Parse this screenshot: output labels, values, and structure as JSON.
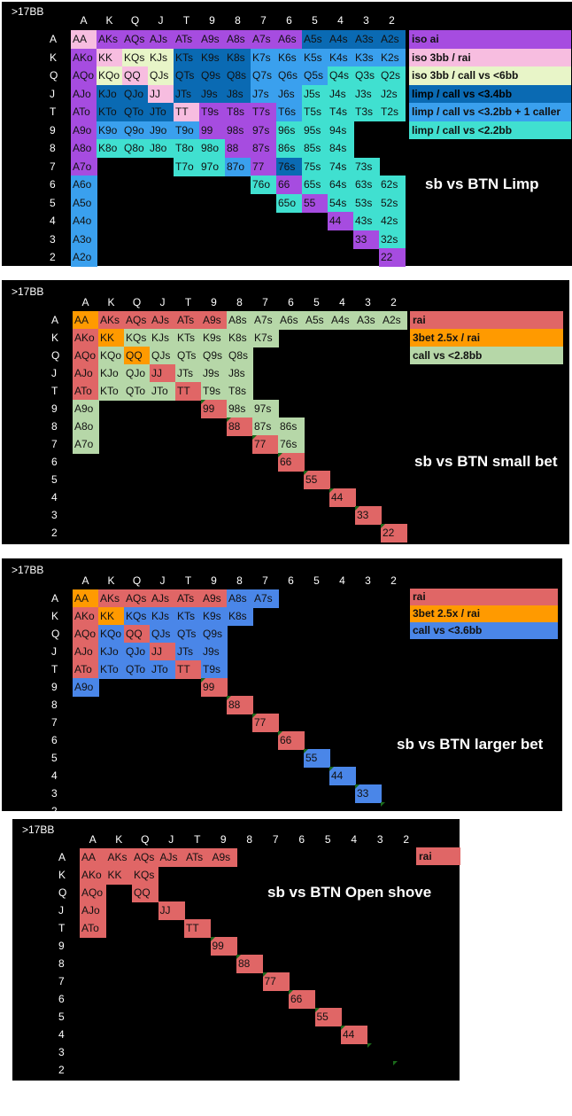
{
  "colors": {
    "iso_ai": "#a64ce0",
    "iso_3bb_rai": "#f7bde0",
    "iso_3bb_call6": "#e8f5c8",
    "limp_call_3_4": "#0a6ab3",
    "limp_call_3_2": "#3aa0ee",
    "limp_call_2_2": "#40e0d0",
    "rai": "#e06666",
    "three_bet": "#ff9a00",
    "call_green": "#b6d7a8",
    "call_blue": "#4a86e8"
  },
  "ranks": [
    "A",
    "K",
    "Q",
    "J",
    "T",
    "9",
    "8",
    "7",
    "6",
    "5",
    "4",
    "3",
    "2"
  ],
  "panels": [
    {
      "stack": ">17BB",
      "caption": "sb vs BTN Limp",
      "legend": [
        {
          "label": "iso ai",
          "color": "iso_ai"
        },
        {
          "label": "iso 3bb / rai",
          "color": "iso_3bb_rai"
        },
        {
          "label": "iso 3bb / call vs <6bb",
          "color": "iso_3bb_call6"
        },
        {
          "label": "limp / call vs <3.4bb",
          "color": "limp_call_3_4"
        },
        {
          "label": "limp / call vs <3.2bb + 1 caller",
          "color": "limp_call_3_2"
        },
        {
          "label": "limp / call vs <2.2bb",
          "color": "limp_call_2_2"
        }
      ],
      "grid": [
        [
          "AA iso_3bb_rai",
          "AKs iso_ai",
          "AQs iso_ai",
          "AJs iso_ai",
          "ATs iso_ai",
          "A9s iso_ai",
          "A8s iso_ai",
          "A7s iso_ai",
          "A6s iso_ai",
          "A5s limp_call_3_4",
          "A4s limp_call_3_4",
          "A3s limp_call_3_4",
          "A2s limp_call_3_4"
        ],
        [
          "AKo iso_ai",
          "KK iso_3bb_rai",
          "KQs iso_3bb_call6",
          "KJs iso_3bb_call6",
          "KTs limp_call_3_4",
          "K9s limp_call_3_4",
          "K8s limp_call_3_4",
          "K7s limp_call_3_2",
          "K6s limp_call_3_2",
          "K5s limp_call_3_2",
          "K4s limp_call_3_2",
          "K3s limp_call_3_2",
          "K2s limp_call_3_2"
        ],
        [
          "AQo iso_ai",
          "KQo iso_3bb_call6",
          "QQ iso_3bb_rai",
          "QJs iso_3bb_call6",
          "QTs limp_call_3_4",
          "Q9s limp_call_3_4",
          "Q8s limp_call_3_4",
          "Q7s limp_call_3_2",
          "Q6s limp_call_3_2",
          "Q5s limp_call_3_2",
          "Q4s limp_call_2_2",
          "Q3s limp_call_2_2",
          "Q2s limp_call_2_2"
        ],
        [
          "AJo iso_ai",
          "KJo limp_call_3_4",
          "QJo limp_call_3_4",
          "JJ iso_3bb_rai",
          "JTs limp_call_3_4",
          "J9s limp_call_3_4",
          "J8s limp_call_3_4",
          "J7s limp_call_3_2",
          "J6s limp_call_3_2",
          "J5s limp_call_2_2",
          "J4s limp_call_2_2",
          "J3s limp_call_2_2",
          "J2s limp_call_2_2"
        ],
        [
          "ATo iso_ai",
          "KTo limp_call_3_4",
          "QTo limp_call_3_4",
          "JTo limp_call_3_4",
          "TT iso_3bb_rai",
          "T9s iso_ai",
          "T8s iso_ai",
          "T7s iso_ai",
          "T6s limp_call_3_2",
          "T5s limp_call_2_2",
          "T4s limp_call_2_2",
          "T3s limp_call_2_2",
          "T2s limp_call_2_2"
        ],
        [
          "A9o iso_ai",
          "K9o limp_call_3_2",
          "Q9o limp_call_3_2",
          "J9o limp_call_3_2",
          "T9o limp_call_3_2",
          "99 iso_ai",
          "98s iso_ai",
          "97s iso_ai",
          "96s limp_call_2_2",
          "95s limp_call_2_2",
          "94s limp_call_2_2",
          "",
          ""
        ],
        [
          "A8o iso_ai",
          "K8o limp_call_2_2",
          "Q8o limp_call_2_2",
          "J8o limp_call_2_2",
          "T8o limp_call_2_2",
          "98o limp_call_2_2",
          "88 iso_ai",
          "87s iso_ai",
          "86s limp_call_2_2",
          "85s limp_call_2_2",
          "84s limp_call_2_2",
          "",
          ""
        ],
        [
          "A7o iso_ai",
          "",
          "",
          "",
          "T7o limp_call_2_2",
          "97o limp_call_2_2",
          "87o limp_call_3_2",
          "77 iso_ai",
          "76s limp_call_3_4",
          "75s limp_call_2_2",
          "74s limp_call_2_2",
          "73s limp_call_2_2",
          ""
        ],
        [
          "A6o limp_call_3_2",
          "",
          "",
          "",
          "",
          "",
          "",
          "76o limp_call_2_2",
          "66 iso_ai",
          "65s limp_call_2_2",
          "64s limp_call_2_2",
          "63s limp_call_2_2",
          "62s limp_call_2_2"
        ],
        [
          "A5o limp_call_3_2",
          "",
          "",
          "",
          "",
          "",
          "",
          "",
          "65o limp_call_2_2",
          "55 iso_ai",
          "54s limp_call_2_2",
          "53s limp_call_2_2",
          "52s limp_call_2_2"
        ],
        [
          "A4o limp_call_3_2",
          "",
          "",
          "",
          "",
          "",
          "",
          "",
          "",
          "",
          "44 iso_ai",
          "43s limp_call_2_2",
          "42s limp_call_2_2"
        ],
        [
          "A3o limp_call_3_2",
          "",
          "",
          "",
          "",
          "",
          "",
          "",
          "",
          "",
          "",
          "33 iso_ai",
          "32s limp_call_2_2"
        ],
        [
          "A2o limp_call_3_2",
          "",
          "",
          "",
          "",
          "",
          "",
          "",
          "",
          "",
          "",
          "",
          "22 iso_ai"
        ]
      ]
    },
    {
      "stack": ">17BB",
      "caption": "sb vs BTN small bet",
      "legend": [
        {
          "label": "rai",
          "color": "rai"
        },
        {
          "label": "3bet 2.5x / rai",
          "color": "three_bet"
        },
        {
          "label": "call vs <2.8bb",
          "color": "call_green"
        }
      ],
      "grid": [
        [
          "AA three_bet",
          "AKs rai",
          "AQs rai",
          "AJs rai",
          "ATs rai",
          "A9s rai",
          "A8s call_green",
          "A7s call_green",
          "A6s call_green",
          "A5s call_green",
          "A4s call_green",
          "A3s call_green",
          "A2s call_green"
        ],
        [
          "AKo rai",
          "KK three_bet",
          "KQs call_green",
          "KJs call_green",
          "KTs call_green",
          "K9s call_green",
          "K8s call_green",
          "K7s call_green",
          "",
          "",
          "",
          "",
          ""
        ],
        [
          "AQo rai",
          "KQo call_green",
          "QQ three_bet",
          "QJs call_green",
          "QTs call_green",
          "Q9s call_green",
          "Q8s call_green",
          "",
          "",
          "",
          "",
          "",
          ""
        ],
        [
          "AJo rai",
          "KJo call_green",
          "QJo call_green",
          "JJ rai",
          "JTs call_green",
          "J9s call_green",
          "J8s call_green",
          "",
          "",
          "",
          "",
          "",
          ""
        ],
        [
          "ATo rai",
          "KTo call_green",
          "QTo call_green",
          "JTo call_green",
          "TT rai",
          "T9s call_green",
          "T8s call_green",
          "",
          "",
          "",
          "",
          "",
          ""
        ],
        [
          "A9o call_green",
          "",
          "",
          "",
          "",
          "99 rai",
          "98s call_green",
          "97s call_green",
          "",
          "",
          "",
          "",
          ""
        ],
        [
          "A8o call_green",
          "",
          "",
          "",
          "",
          "",
          "88 rai",
          "87s call_green",
          "86s call_green",
          "",
          "",
          "",
          ""
        ],
        [
          "A7o call_green",
          "",
          "",
          "",
          "",
          "",
          "",
          "77 rai",
          "76s call_green",
          "",
          "",
          "",
          ""
        ],
        [
          "",
          "",
          "",
          "",
          "",
          "",
          "",
          "",
          "66 rai",
          "",
          "",
          "",
          ""
        ],
        [
          "",
          "",
          "",
          "",
          "",
          "",
          "",
          "",
          "",
          "55 rai",
          "",
          "",
          ""
        ],
        [
          "",
          "",
          "",
          "",
          "",
          "",
          "",
          "",
          "",
          "",
          "44 rai",
          "",
          ""
        ],
        [
          "",
          "",
          "",
          "",
          "",
          "",
          "",
          "",
          "",
          "",
          "",
          "33 rai",
          ""
        ],
        [
          "",
          "",
          "",
          "",
          "",
          "",
          "",
          "",
          "",
          "",
          "",
          "",
          "22 rai"
        ]
      ]
    },
    {
      "stack": ">17BB",
      "caption": "sb vs BTN larger bet",
      "legend": [
        {
          "label": "rai",
          "color": "rai"
        },
        {
          "label": "3bet 2.5x / rai",
          "color": "three_bet"
        },
        {
          "label": "call vs <3.6bb",
          "color": "call_blue"
        }
      ],
      "grid": [
        [
          "AA three_bet",
          "AKs rai",
          "AQs rai",
          "AJs rai",
          "ATs rai",
          "A9s rai",
          "A8s call_blue",
          "A7s call_blue",
          "",
          "",
          "",
          "",
          ""
        ],
        [
          "AKo rai",
          "KK three_bet",
          "KQs call_blue",
          "KJs call_blue",
          "KTs call_blue",
          "K9s call_blue",
          "K8s call_blue",
          "",
          "",
          "",
          "",
          "",
          ""
        ],
        [
          "AQo rai",
          "KQo call_blue",
          "QQ rai",
          "QJs call_blue",
          "QTs call_blue",
          "Q9s call_blue",
          "",
          "",
          "",
          "",
          "",
          "",
          ""
        ],
        [
          "AJo rai",
          "KJo call_blue",
          "QJo call_blue",
          "JJ rai",
          "JTs call_blue",
          "J9s call_blue",
          "",
          "",
          "",
          "",
          "",
          "",
          ""
        ],
        [
          "ATo rai",
          "KTo call_blue",
          "QTo call_blue",
          "JTo call_blue",
          "TT rai",
          "T9s call_blue",
          "",
          "",
          "",
          "",
          "",
          "",
          ""
        ],
        [
          "A9o call_blue",
          "",
          "",
          "",
          "",
          "99 rai",
          "",
          "",
          "",
          "",
          "",
          "",
          ""
        ],
        [
          "",
          "",
          "",
          "",
          "",
          "",
          "88 rai",
          "",
          "",
          "",
          "",
          "",
          ""
        ],
        [
          "",
          "",
          "",
          "",
          "",
          "",
          "",
          "77 rai",
          "",
          "",
          "",
          "",
          ""
        ],
        [
          "",
          "",
          "",
          "",
          "",
          "",
          "",
          "",
          "66 rai",
          "",
          "",
          "",
          ""
        ],
        [
          "",
          "",
          "",
          "",
          "",
          "",
          "",
          "",
          "",
          "55 call_blue",
          "",
          "",
          ""
        ],
        [
          "",
          "",
          "",
          "",
          "",
          "",
          "",
          "",
          "",
          "",
          "44 call_blue",
          "",
          ""
        ],
        [
          "",
          "",
          "",
          "",
          "",
          "",
          "",
          "",
          "",
          "",
          "",
          "33 call_blue",
          ""
        ],
        [
          "",
          "",
          "",
          "",
          "",
          "",
          "",
          "",
          "",
          "",
          "",
          "",
          ""
        ]
      ]
    },
    {
      "stack": ">17BB",
      "caption": "sb vs BTN Open shove",
      "legend": [
        {
          "label": "rai",
          "color": "rai"
        }
      ],
      "grid": [
        [
          "AA rai",
          "AKs rai",
          "AQs rai",
          "AJs rai",
          "ATs rai",
          "A9s rai",
          "",
          "",
          "",
          "",
          "",
          "",
          ""
        ],
        [
          "AKo rai",
          "KK rai",
          "KQs rai",
          "",
          "",
          "",
          "",
          "",
          "",
          "",
          "",
          "",
          ""
        ],
        [
          "AQo rai",
          "",
          "QQ rai",
          "",
          "",
          "",
          "",
          "",
          "",
          "",
          "",
          "",
          ""
        ],
        [
          "AJo rai",
          "",
          "",
          "JJ rai",
          "",
          "",
          "",
          "",
          "",
          "",
          "",
          "",
          ""
        ],
        [
          "ATo rai",
          "",
          "",
          "",
          "TT rai",
          "",
          "",
          "",
          "",
          "",
          "",
          "",
          ""
        ],
        [
          "",
          "",
          "",
          "",
          "",
          "99 rai",
          "",
          "",
          "",
          "",
          "",
          "",
          ""
        ],
        [
          "",
          "",
          "",
          "",
          "",
          "",
          "88 rai",
          "",
          "",
          "",
          "",
          "",
          ""
        ],
        [
          "",
          "",
          "",
          "",
          "",
          "",
          "",
          "77 rai",
          "",
          "",
          "",
          "",
          ""
        ],
        [
          "",
          "",
          "",
          "",
          "",
          "",
          "",
          "",
          "66 rai",
          "",
          "",
          "",
          ""
        ],
        [
          "",
          "",
          "",
          "",
          "",
          "",
          "",
          "",
          "",
          "55 rai",
          "",
          "",
          ""
        ],
        [
          "",
          "",
          "",
          "",
          "",
          "",
          "",
          "",
          "",
          "",
          "44 rai",
          "",
          ""
        ],
        [
          "",
          "",
          "",
          "",
          "",
          "",
          "",
          "",
          "",
          "",
          "",
          "",
          ""
        ],
        [
          "",
          "",
          "",
          "",
          "",
          "",
          "",
          "",
          "",
          "",
          "",
          "",
          ""
        ]
      ]
    }
  ]
}
